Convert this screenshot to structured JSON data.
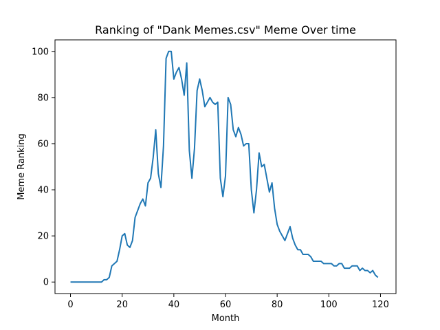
{
  "chart_data": {
    "type": "line",
    "title": "Ranking of \"Dank Memes.csv\" Meme Over time",
    "xlabel": "Month",
    "ylabel": "Meme Ranking",
    "xlim": [
      -6,
      126
    ],
    "ylim": [
      -5,
      105
    ],
    "x_ticks": [
      0,
      20,
      40,
      60,
      80,
      100,
      120
    ],
    "y_ticks": [
      0,
      20,
      40,
      60,
      80,
      100
    ],
    "grid": false,
    "legend": "none",
    "series": [
      {
        "color": "#1f77b4",
        "x": [
          0,
          1,
          2,
          3,
          4,
          5,
          6,
          7,
          8,
          9,
          10,
          11,
          12,
          13,
          14,
          15,
          16,
          17,
          18,
          19,
          20,
          21,
          22,
          23,
          24,
          25,
          26,
          27,
          28,
          29,
          30,
          31,
          32,
          33,
          34,
          35,
          36,
          37,
          38,
          39,
          40,
          41,
          42,
          43,
          44,
          45,
          46,
          47,
          48,
          49,
          50,
          51,
          52,
          53,
          54,
          55,
          56,
          57,
          58,
          59,
          60,
          61,
          62,
          63,
          64,
          65,
          66,
          67,
          68,
          69,
          70,
          71,
          72,
          73,
          74,
          75,
          76,
          77,
          78,
          79,
          80,
          81,
          82,
          83,
          84,
          85,
          86,
          87,
          88,
          89,
          90,
          91,
          92,
          93,
          94,
          95,
          96,
          97,
          98,
          99,
          100,
          101,
          102,
          103,
          104,
          105,
          106,
          107,
          108,
          109,
          110,
          111,
          112,
          113,
          114,
          115,
          116,
          117,
          118,
          119
        ],
        "values": [
          0,
          0,
          0,
          0,
          0,
          0,
          0,
          0,
          0,
          0,
          0,
          0,
          0,
          1,
          1,
          2,
          7,
          8,
          9,
          14,
          20,
          21,
          16,
          15,
          18,
          28,
          31,
          34,
          36,
          33,
          43,
          45,
          54,
          66,
          47,
          41,
          59,
          97,
          100,
          100,
          88,
          91,
          93,
          88,
          81,
          95,
          57,
          45,
          58,
          83,
          88,
          83,
          76,
          78,
          80,
          78,
          77,
          78,
          45,
          37,
          46,
          80,
          77,
          66,
          63,
          67,
          64,
          59,
          60,
          60,
          40,
          30,
          40,
          56,
          50,
          51,
          45,
          39,
          43,
          32,
          25,
          22,
          20,
          18,
          21,
          24,
          19,
          16,
          14,
          14,
          12,
          12,
          12,
          11,
          9,
          9,
          9,
          9,
          8,
          8,
          8,
          8,
          7,
          7,
          8,
          8,
          6,
          6,
          6,
          7,
          7,
          7,
          5,
          6,
          5,
          5,
          4,
          5,
          3,
          2
        ]
      }
    ]
  }
}
